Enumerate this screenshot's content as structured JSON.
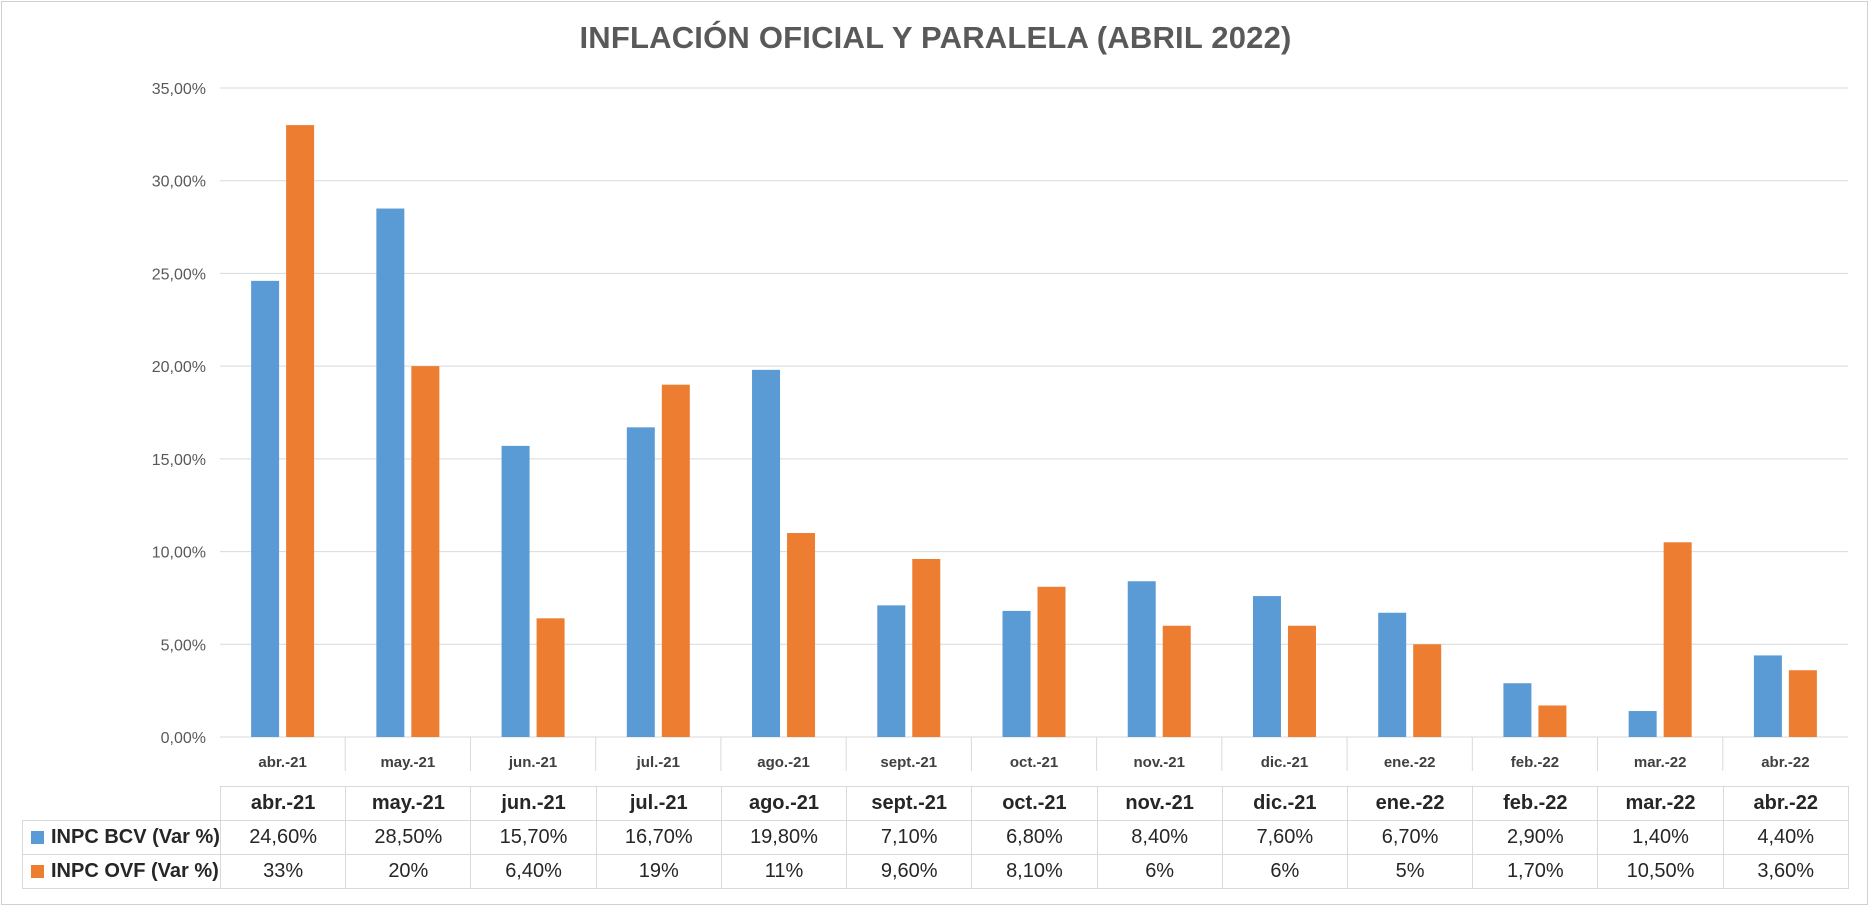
{
  "colors": {
    "bcv": "#5b9bd5",
    "ovf": "#ed7d31",
    "grid": "#d9d9d9",
    "text": "#595959"
  },
  "chart_data": {
    "type": "bar",
    "title": "INFLACIÓN OFICIAL Y PARALELA (ABRIL 2022)",
    "categories": [
      "abr.-21",
      "may.-21",
      "jun.-21",
      "jul.-21",
      "ago.-21",
      "sept.-21",
      "oct.-21",
      "nov.-21",
      "dic.-21",
      "ene.-22",
      "feb.-22",
      "mar.-22",
      "abr.-22"
    ],
    "series": [
      {
        "name": "INPC BCV (Var %)",
        "color": "#5b9bd5",
        "values": [
          24.6,
          28.5,
          15.7,
          16.7,
          19.8,
          7.1,
          6.8,
          8.4,
          7.6,
          6.7,
          2.9,
          1.4,
          4.4
        ],
        "labels": [
          "24,60%",
          "28,50%",
          "15,70%",
          "16,70%",
          "19,80%",
          "7,10%",
          "6,80%",
          "8,40%",
          "7,60%",
          "6,70%",
          "2,90%",
          "1,40%",
          "4,40%"
        ]
      },
      {
        "name": "INPC OVF (Var %)",
        "color": "#ed7d31",
        "values": [
          33,
          20,
          6.4,
          19,
          11,
          9.6,
          8.1,
          6,
          6,
          5,
          1.7,
          10.5,
          3.6
        ],
        "labels": [
          "33%",
          "20%",
          "6,40%",
          "19%",
          "11%",
          "9,60%",
          "8,10%",
          "6%",
          "6%",
          "5%",
          "1,70%",
          "10,50%",
          "3,60%"
        ]
      }
    ],
    "ylim": [
      0,
      35
    ],
    "yticks": [
      0,
      5,
      10,
      15,
      20,
      25,
      30,
      35
    ],
    "ytick_labels": [
      "0,00%",
      "5,00%",
      "10,00%",
      "15,00%",
      "20,00%",
      "25,00%",
      "30,00%",
      "35,00%"
    ],
    "xlabel": "",
    "ylabel": "",
    "grid": true,
    "legend": "data-table"
  }
}
